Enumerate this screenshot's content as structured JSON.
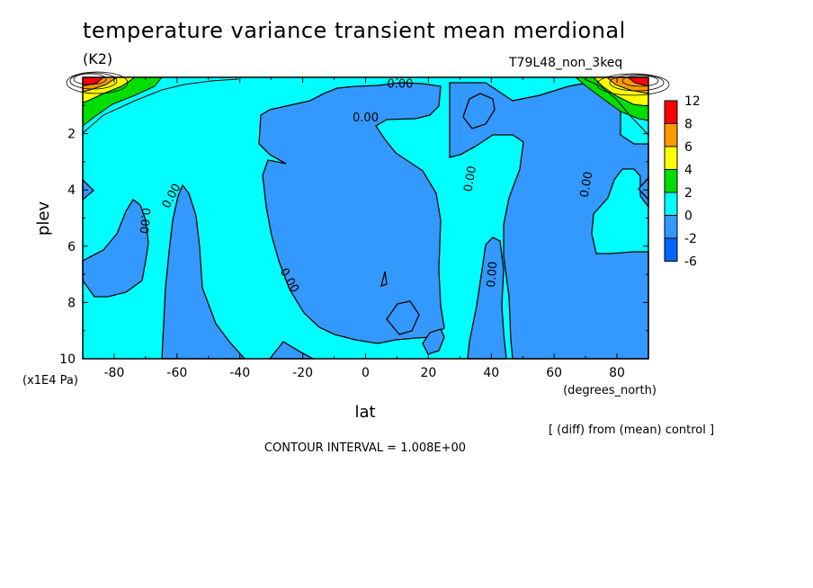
{
  "title": "temperature variance transient mean merdional",
  "units": "(K2)",
  "run_name": "T79L48_non_3keq",
  "footer": {
    "subtitle": "[ (diff) from (mean) control ]",
    "contour_interval": "CONTOUR INTERVAL = 1.008E+00"
  },
  "chart_data": {
    "type": "contour",
    "title": "temperature variance transient mean merdional",
    "units": "(K2)",
    "xlabel": "lat",
    "xunits": "(degrees_north)",
    "ylabel": "plev",
    "yunits": "(x1E4 Pa)",
    "xlim": [
      -90,
      90
    ],
    "ylim": [
      10,
      0
    ],
    "x_ticks": [
      -80,
      -60,
      -40,
      -20,
      0,
      20,
      40,
      60,
      80
    ],
    "x_tick_labels": [
      "-80",
      "-60",
      "-40",
      "-20",
      "0",
      "20",
      "40",
      "60",
      "80"
    ],
    "y_ticks": [
      2,
      4,
      6,
      8,
      10
    ],
    "y_tick_labels": [
      "2",
      "4",
      "6",
      "8",
      "10"
    ],
    "contour_interval": 1.008,
    "zero_contour_label": "0.00",
    "zero_contour_label_positions": [
      [
        11,
        0.2
      ],
      [
        0,
        1.4
      ],
      [
        33,
        3.6
      ],
      [
        70,
        3.8
      ],
      [
        -62,
        4.2
      ],
      [
        -70,
        5.1
      ],
      [
        -24,
        7.2
      ],
      [
        40,
        7.0
      ]
    ],
    "colorbar": {
      "levels": [
        "12",
        "8",
        "6",
        "4",
        "2",
        "0",
        "-2",
        "-6"
      ],
      "colors": [
        "#ff0000",
        "#ff9900",
        "#ffff00",
        "#00dd00",
        "#00ffff",
        "#3399ff",
        "#0066ff"
      ]
    },
    "regions": [
      {
        "fill": "#00ffff",
        "value_range": [
          0,
          2
        ],
        "description": "background positive"
      },
      {
        "fill": "#3399ff",
        "value_range": [
          -2,
          0
        ],
        "description": "negative bands"
      }
    ]
  }
}
